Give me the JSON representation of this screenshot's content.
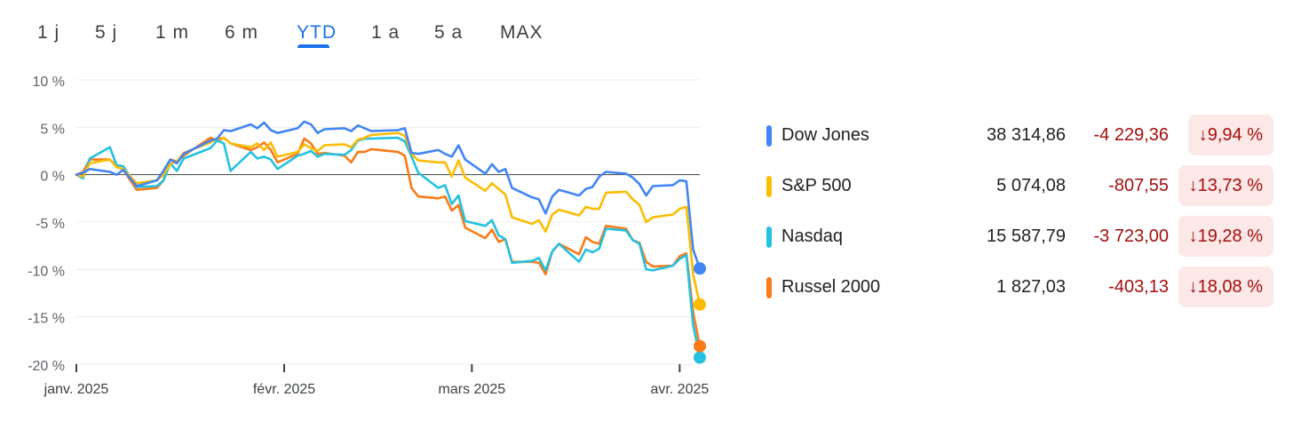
{
  "tabs": [
    "1 j",
    "5 j",
    "1 m",
    "6 m",
    "YTD",
    "1 a",
    "5 a",
    "MAX"
  ],
  "active_tab": "YTD",
  "legend": [
    {
      "name": "Dow Jones",
      "value": "38 314,86",
      "change": "-4 229,36",
      "pct": "9,94 %",
      "color": "#4285f4"
    },
    {
      "name": "S&P 500",
      "value": "5 074,08",
      "change": "-807,55",
      "pct": "13,73 %",
      "color": "#fbbc04"
    },
    {
      "name": "Nasdaq",
      "value": "15 587,79",
      "change": "-3 723,00",
      "pct": "19,28 %",
      "color": "#24c1e0"
    },
    {
      "name": "Russel 2000",
      "value": "1 827,03",
      "change": "-403,13",
      "pct": "18,08 %",
      "color": "#fa7b17"
    }
  ],
  "chart_data": {
    "type": "line",
    "title": "",
    "xlabel": "",
    "ylabel": "",
    "ylim": [
      -20,
      10
    ],
    "y_ticks": [
      10,
      5,
      0,
      -5,
      -10,
      -15,
      -20
    ],
    "y_tick_labels": [
      "10 %",
      "5 %",
      "0 %",
      "-5 %",
      "-10 %",
      "-15 %",
      "-20 %"
    ],
    "x_range": [
      "2025-01-01",
      "2025-04-04"
    ],
    "x_ticks": [
      {
        "date": "2025-01-01",
        "label": "janv. 2025"
      },
      {
        "date": "2025-02-01",
        "label": "févr. 2025"
      },
      {
        "date": "2025-03-01",
        "label": "mars 2025"
      },
      {
        "date": "2025-04-01",
        "label": "avr. 2025"
      }
    ],
    "x": [
      "2025-01-01",
      "2025-01-02",
      "2025-01-03",
      "2025-01-06",
      "2025-01-07",
      "2025-01-08",
      "2025-01-10",
      "2025-01-13",
      "2025-01-14",
      "2025-01-15",
      "2025-01-16",
      "2025-01-17",
      "2025-01-21",
      "2025-01-22",
      "2025-01-23",
      "2025-01-24",
      "2025-01-27",
      "2025-01-28",
      "2025-01-29",
      "2025-01-30",
      "2025-01-31",
      "2025-02-03",
      "2025-02-04",
      "2025-02-05",
      "2025-02-06",
      "2025-02-07",
      "2025-02-10",
      "2025-02-11",
      "2025-02-12",
      "2025-02-13",
      "2025-02-14",
      "2025-02-18",
      "2025-02-19",
      "2025-02-20",
      "2025-02-21",
      "2025-02-24",
      "2025-02-25",
      "2025-02-26",
      "2025-02-27",
      "2025-02-28",
      "2025-03-03",
      "2025-03-04",
      "2025-03-05",
      "2025-03-06",
      "2025-03-07",
      "2025-03-10",
      "2025-03-11",
      "2025-03-12",
      "2025-03-13",
      "2025-03-14",
      "2025-03-17",
      "2025-03-18",
      "2025-03-19",
      "2025-03-20",
      "2025-03-21",
      "2025-03-24",
      "2025-03-25",
      "2025-03-26",
      "2025-03-27",
      "2025-03-28",
      "2025-03-31",
      "2025-04-01",
      "2025-04-02",
      "2025-04-03",
      "2025-04-04"
    ],
    "zero_line": true,
    "grid": true,
    "series": [
      {
        "name": "Dow Jones",
        "color": "#4285f4",
        "values": [
          0.0,
          0.2,
          0.6,
          0.3,
          0.0,
          0.5,
          -1.2,
          -0.6,
          0.4,
          1.6,
          1.2,
          2.2,
          3.6,
          3.8,
          4.7,
          4.6,
          5.3,
          4.9,
          5.5,
          4.7,
          4.4,
          4.9,
          5.6,
          5.3,
          4.4,
          4.8,
          4.9,
          4.6,
          5.2,
          4.9,
          4.6,
          4.7,
          4.9,
          2.3,
          2.2,
          2.6,
          2.2,
          1.9,
          3.1,
          1.6,
          0.1,
          1.1,
          0.3,
          0.6,
          -1.4,
          -2.4,
          -2.6,
          -4.1,
          -2.3,
          -1.6,
          -2.2,
          -1.5,
          -1.3,
          -0.2,
          0.3,
          0.1,
          -0.3,
          -1.0,
          -2.2,
          -1.2,
          -1.1,
          -0.6,
          -0.7,
          -7.9,
          -9.9
        ]
      },
      {
        "name": "S&P 500",
        "color": "#fbbc04",
        "values": [
          0.0,
          -0.2,
          1.2,
          1.6,
          0.8,
          0.6,
          -0.9,
          -0.6,
          0.0,
          1.1,
          1.4,
          2.3,
          3.4,
          3.8,
          3.9,
          3.3,
          2.9,
          3.3,
          2.6,
          3.4,
          1.9,
          2.4,
          3.2,
          2.8,
          2.5,
          3.1,
          3.2,
          2.9,
          3.7,
          3.9,
          4.2,
          4.4,
          4.1,
          2.2,
          1.5,
          1.3,
          1.3,
          -0.2,
          1.5,
          -0.3,
          -1.7,
          -0.9,
          -1.5,
          -2.1,
          -4.5,
          -5.2,
          -4.8,
          -6.0,
          -4.2,
          -3.7,
          -4.3,
          -3.4,
          -3.6,
          -3.6,
          -1.9,
          -1.8,
          -2.6,
          -3.2,
          -5.0,
          -4.5,
          -4.2,
          -3.6,
          -3.4,
          -10.5,
          -13.7
        ]
      },
      {
        "name": "Nasdaq",
        "color": "#24c1e0",
        "values": [
          0.0,
          -0.4,
          1.7,
          2.9,
          1.0,
          0.9,
          -1.3,
          -1.2,
          -0.6,
          1.2,
          0.4,
          1.7,
          2.8,
          3.6,
          3.3,
          0.4,
          2.4,
          1.7,
          1.9,
          1.6,
          0.6,
          2.0,
          2.2,
          2.5,
          1.9,
          2.2,
          2.1,
          2.6,
          3.6,
          3.8,
          3.8,
          3.9,
          3.5,
          1.9,
          0.2,
          -1.4,
          -1.1,
          -3.1,
          -2.2,
          -4.9,
          -5.4,
          -4.8,
          -6.4,
          -6.8,
          -9.3,
          -9.1,
          -8.8,
          -10.1,
          -8.1,
          -7.3,
          -9.2,
          -7.9,
          -8.2,
          -7.8,
          -5.7,
          -5.9,
          -6.9,
          -7.3,
          -10.0,
          -10.1,
          -9.6,
          -8.9,
          -8.5,
          -15.9,
          -19.3
        ]
      },
      {
        "name": "Russel 2000",
        "color": "#fa7b17",
        "values": [
          0.0,
          0.3,
          1.6,
          1.6,
          0.9,
          0.5,
          -1.6,
          -1.4,
          -0.6,
          1.6,
          1.4,
          2.0,
          3.9,
          3.6,
          3.9,
          3.3,
          2.6,
          2.9,
          3.4,
          2.6,
          1.3,
          2.2,
          3.8,
          3.3,
          2.2,
          2.3,
          2.0,
          1.3,
          2.4,
          2.4,
          2.7,
          2.4,
          2.0,
          -1.4,
          -2.3,
          -2.5,
          -2.3,
          -3.8,
          -3.2,
          -5.6,
          -6.7,
          -5.8,
          -7.1,
          -6.8,
          -9.2,
          -9.2,
          -9.3,
          -10.5,
          -8.1,
          -7.3,
          -8.4,
          -6.6,
          -7.1,
          -7.3,
          -5.4,
          -5.7,
          -6.9,
          -7.2,
          -9.2,
          -9.7,
          -9.6,
          -8.6,
          -8.3,
          -14.5,
          -18.1
        ]
      }
    ]
  }
}
